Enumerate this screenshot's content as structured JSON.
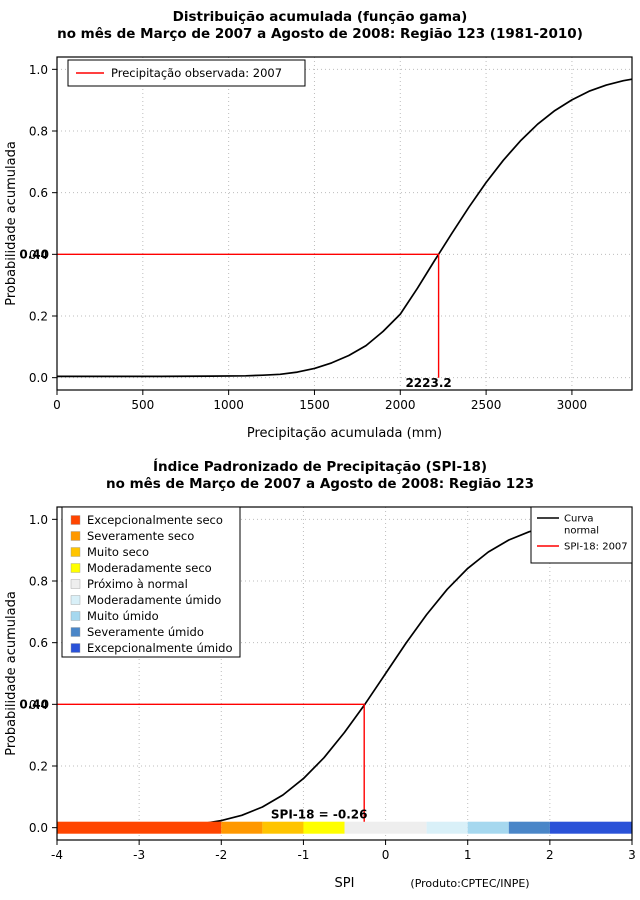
{
  "chart_data": [
    {
      "type": "line",
      "title": "Distribuição acumulada (função gama)",
      "subtitle": "no mês de Março de 2007 a Agosto de 2008: Região 123 (1981-2010)",
      "xlabel": "Precipitação acumulada (mm)",
      "ylabel": "Probabilidade acumulada",
      "xlim": [
        0,
        3350
      ],
      "ylim": [
        -0.04,
        1.04
      ],
      "grid": true,
      "xticks": [
        0,
        500,
        1000,
        1500,
        2000,
        2500,
        3000
      ],
      "xtick_labels": [
        "0",
        "500",
        "1000",
        "1500",
        "2000",
        "2500",
        "3000"
      ],
      "yticks": [
        0,
        0.2,
        0.4,
        0.6,
        0.8,
        1
      ],
      "ytick_labels": [
        "0.0",
        "0.2",
        "0.4",
        "0.6",
        "0.8",
        "1.0"
      ],
      "legend": {
        "position": "top-left",
        "entries": [
          {
            "swatch": "line",
            "color": "#ff0000",
            "label": "Precipitação observada: 2007"
          }
        ]
      },
      "series": [
        {
          "id": "gamma-cdf-curve",
          "color": "#000000",
          "x": [
            0,
            300,
            600,
            900,
            1100,
            1200,
            1300,
            1400,
            1500,
            1600,
            1700,
            1800,
            1900,
            2000,
            2100,
            2200,
            2223.2,
            2300,
            2400,
            2500,
            2600,
            2700,
            2800,
            2900,
            3000,
            3100,
            3200,
            3300,
            3350
          ],
          "y": [
            0.004,
            0.004,
            0.004,
            0.005,
            0.006,
            0.008,
            0.011,
            0.018,
            0.03,
            0.048,
            0.072,
            0.104,
            0.15,
            0.206,
            0.29,
            0.38,
            0.4,
            0.468,
            0.553,
            0.633,
            0.705,
            0.768,
            0.822,
            0.866,
            0.901,
            0.929,
            0.949,
            0.963,
            0.968
          ]
        }
      ],
      "marker": {
        "x": 2223.2,
        "y": 0.4,
        "color": "#ff0000",
        "x_label": "2223.2",
        "y_label": "0.40"
      }
    },
    {
      "type": "line",
      "title": "Índice Padronizado de Precipitação (SPI-18)",
      "subtitle": "no mês de Março de 2007 a Agosto de 2008: Região 123",
      "xlabel": "SPI",
      "ylabel": "Probabilidade acumulada",
      "footnote": "(Produto:CPTEC/INPE)",
      "xlim": [
        -4,
        3
      ],
      "ylim": [
        -0.04,
        1.04
      ],
      "grid": true,
      "xticks": [
        -4,
        -3,
        -2,
        -1,
        0,
        1,
        2,
        3
      ],
      "xtick_labels": [
        "-4",
        "-3",
        "-2",
        "-1",
        "0",
        "1",
        "2",
        "3"
      ],
      "yticks": [
        0,
        0.2,
        0.4,
        0.6,
        0.8,
        1
      ],
      "ytick_labels": [
        "0.0",
        "0.2",
        "0.4",
        "0.6",
        "0.8",
        "1.0"
      ],
      "categories": [
        {
          "label": "Excepcionalmente seco",
          "color": "#ff4500",
          "range": [
            -4,
            -2
          ]
        },
        {
          "label": "Severamente seco",
          "color": "#ff9800",
          "range": [
            -2,
            -1.5
          ]
        },
        {
          "label": "Muito seco",
          "color": "#ffc400",
          "range": [
            -1.5,
            -1
          ]
        },
        {
          "label": "Moderadamente seco",
          "color": "#ffff00",
          "range": [
            -1,
            -0.5
          ]
        },
        {
          "label": "Próximo à normal",
          "color": "#eeeeee",
          "range": [
            -0.5,
            0.5
          ]
        },
        {
          "label": "Moderadamente úmido",
          "color": "#d9f0f8",
          "range": [
            0.5,
            1
          ]
        },
        {
          "label": "Muito úmido",
          "color": "#a6d8ef",
          "range": [
            1,
            1.5
          ]
        },
        {
          "label": "Severamente úmido",
          "color": "#4a86c8",
          "range": [
            1.5,
            2
          ]
        },
        {
          "label": "Excepcionalmente úmido",
          "color": "#2a52d8",
          "range": [
            2,
            3
          ]
        }
      ],
      "line_legend": [
        {
          "swatch": "line",
          "color": "#000000",
          "lines": [
            "Curva",
            "normal"
          ]
        },
        {
          "swatch": "line",
          "color": "#ff0000",
          "lines": [
            "SPI-18: 2007"
          ]
        }
      ],
      "series": [
        {
          "id": "normal-cdf-curve",
          "name": "Curva normal",
          "color": "#000000",
          "x": [
            -4,
            -3.5,
            -3,
            -2.75,
            -2.5,
            -2.25,
            -2,
            -1.75,
            -1.5,
            -1.25,
            -1,
            -0.75,
            -0.5,
            -0.26,
            0,
            0.25,
            0.5,
            0.75,
            1,
            1.25,
            1.5,
            1.75,
            2,
            2.25,
            2.5,
            2.75,
            3
          ],
          "y": [
            0.0003,
            0.0005,
            0.0013,
            0.003,
            0.006,
            0.012,
            0.023,
            0.04,
            0.067,
            0.106,
            0.159,
            0.227,
            0.309,
            0.397,
            0.5,
            0.599,
            0.691,
            0.773,
            0.841,
            0.894,
            0.933,
            0.96,
            0.977,
            0.988,
            0.994,
            0.997,
            0.999
          ]
        }
      ],
      "marker": {
        "x": -0.26,
        "y": 0.4,
        "color": "#ff0000",
        "label": "SPI-18 = -0.26",
        "y_label": "0.40"
      }
    }
  ]
}
